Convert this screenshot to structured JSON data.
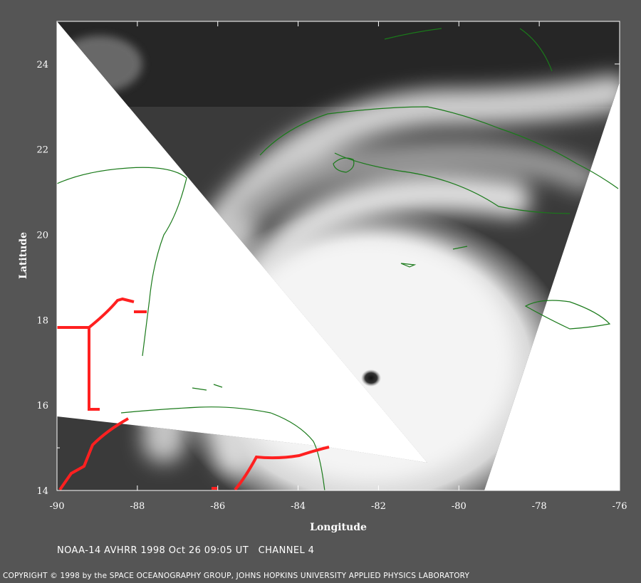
{
  "figure": {
    "x_axis_title": "Longitude",
    "y_axis_title": "Latitude",
    "caption": "NOAA-14 AVHRR 1998 Oct 26 09:05 UT   CHANNEL 4",
    "copyright": "COPYRIGHT © 1998 by the SPACE OCEANOGRAPHY GROUP, JOHNS HOPKINS UNIVERSITY APPLIED PHYSICS LABORATORY"
  },
  "map": {
    "lon_range": [
      -90,
      -76
    ],
    "lat_range": [
      14,
      25
    ],
    "lon_ticks": [
      -90,
      -88,
      -86,
      -84,
      -82,
      -80,
      -78,
      -76
    ],
    "lat_ticks": [
      16,
      18,
      20,
      22,
      24
    ],
    "storm_eye": {
      "lon": -82.3,
      "lat": 16.6
    },
    "colors": {
      "background": "#555555",
      "no_data": "#ffffff",
      "coastline": "#1a7a1a",
      "border": "#ff2020"
    }
  }
}
